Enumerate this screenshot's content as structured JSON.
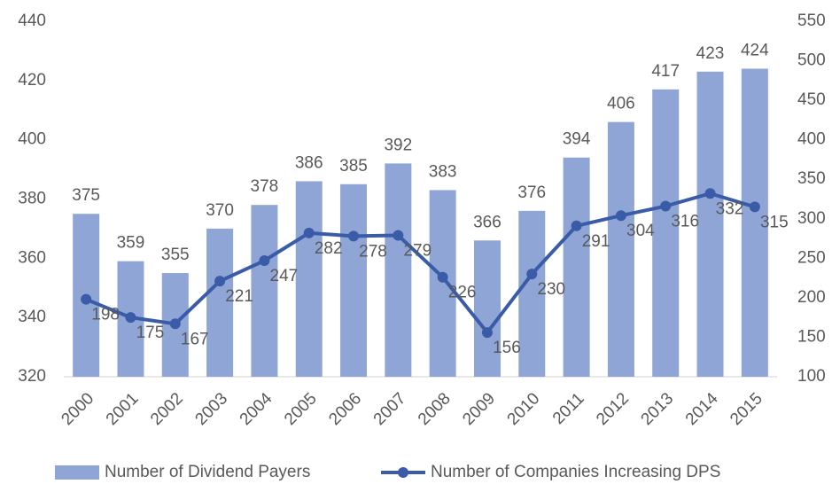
{
  "chart_data": {
    "type": "bar",
    "categories": [
      "2000",
      "2001",
      "2002",
      "2003",
      "2004",
      "2005",
      "2006",
      "2007",
      "2008",
      "2009",
      "2010",
      "2011",
      "2012",
      "2013",
      "2014",
      "2015"
    ],
    "series": [
      {
        "name": "Number of Dividend Payers",
        "color": "#8fa5d6",
        "type": "bar",
        "values": [
          375,
          359,
          355,
          370,
          378,
          386,
          385,
          392,
          383,
          366,
          376,
          394,
          406,
          417,
          423,
          424
        ]
      },
      {
        "name": "Number of Companies Increasing DPS",
        "color": "#3a5ca8",
        "type": "line",
        "axis": "y2",
        "values": [
          198,
          175,
          167,
          221,
          247,
          282,
          278,
          279,
          226,
          156,
          230,
          291,
          304,
          316,
          332,
          315
        ]
      }
    ],
    "ylim": [
      320,
      440
    ],
    "yticks": [
      320,
      340,
      360,
      380,
      400,
      420,
      440
    ],
    "y2lim": [
      100,
      550
    ],
    "y2ticks": [
      100,
      150,
      200,
      250,
      300,
      350,
      400,
      450,
      500,
      550
    ],
    "legend": "bottom"
  }
}
